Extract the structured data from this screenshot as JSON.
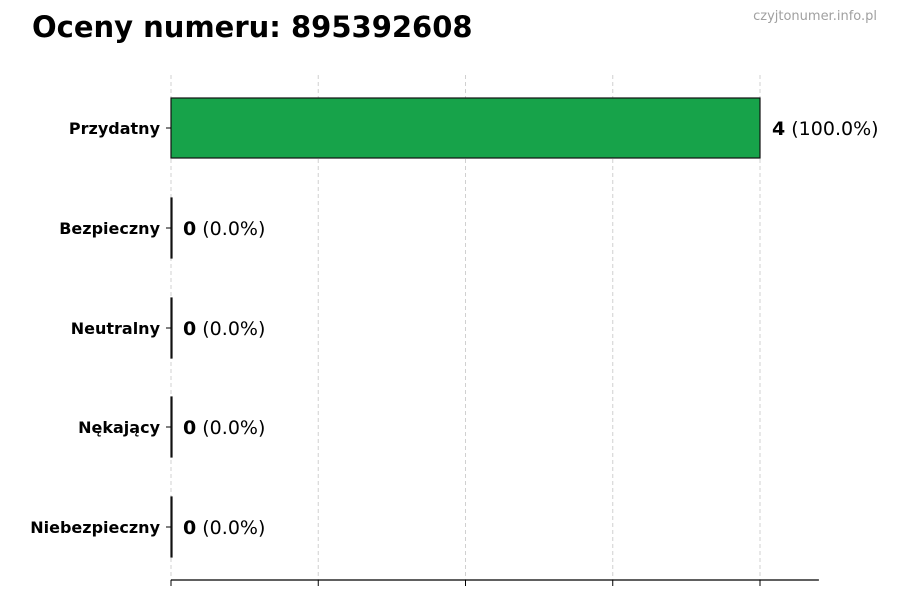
{
  "chart_data": {
    "type": "bar",
    "orientation": "horizontal",
    "title": "Oceny numeru: 895392608",
    "watermark": "czyjtonumer.info.pl",
    "categories": [
      "Przydatny",
      "Bezpieczny",
      "Neutralny",
      "Nękający",
      "Niebezpieczny"
    ],
    "values": [
      4,
      0,
      0,
      0,
      0
    ],
    "value_labels": [
      "4",
      "0",
      "0",
      "0",
      "0"
    ],
    "percent_labels": [
      "(100.0%)",
      "(0.0%)",
      "(0.0%)",
      "(0.0%)",
      "(0.0%)"
    ],
    "colors": [
      "#17a34a",
      "#333333",
      "#333333",
      "#333333",
      "#333333"
    ],
    "xlim": [
      0,
      4.4
    ],
    "xticks": [
      0,
      1,
      2,
      3,
      4
    ],
    "xtick_labels_shown": false,
    "grid": "vertical dashed",
    "xlabel": "",
    "ylabel": ""
  }
}
